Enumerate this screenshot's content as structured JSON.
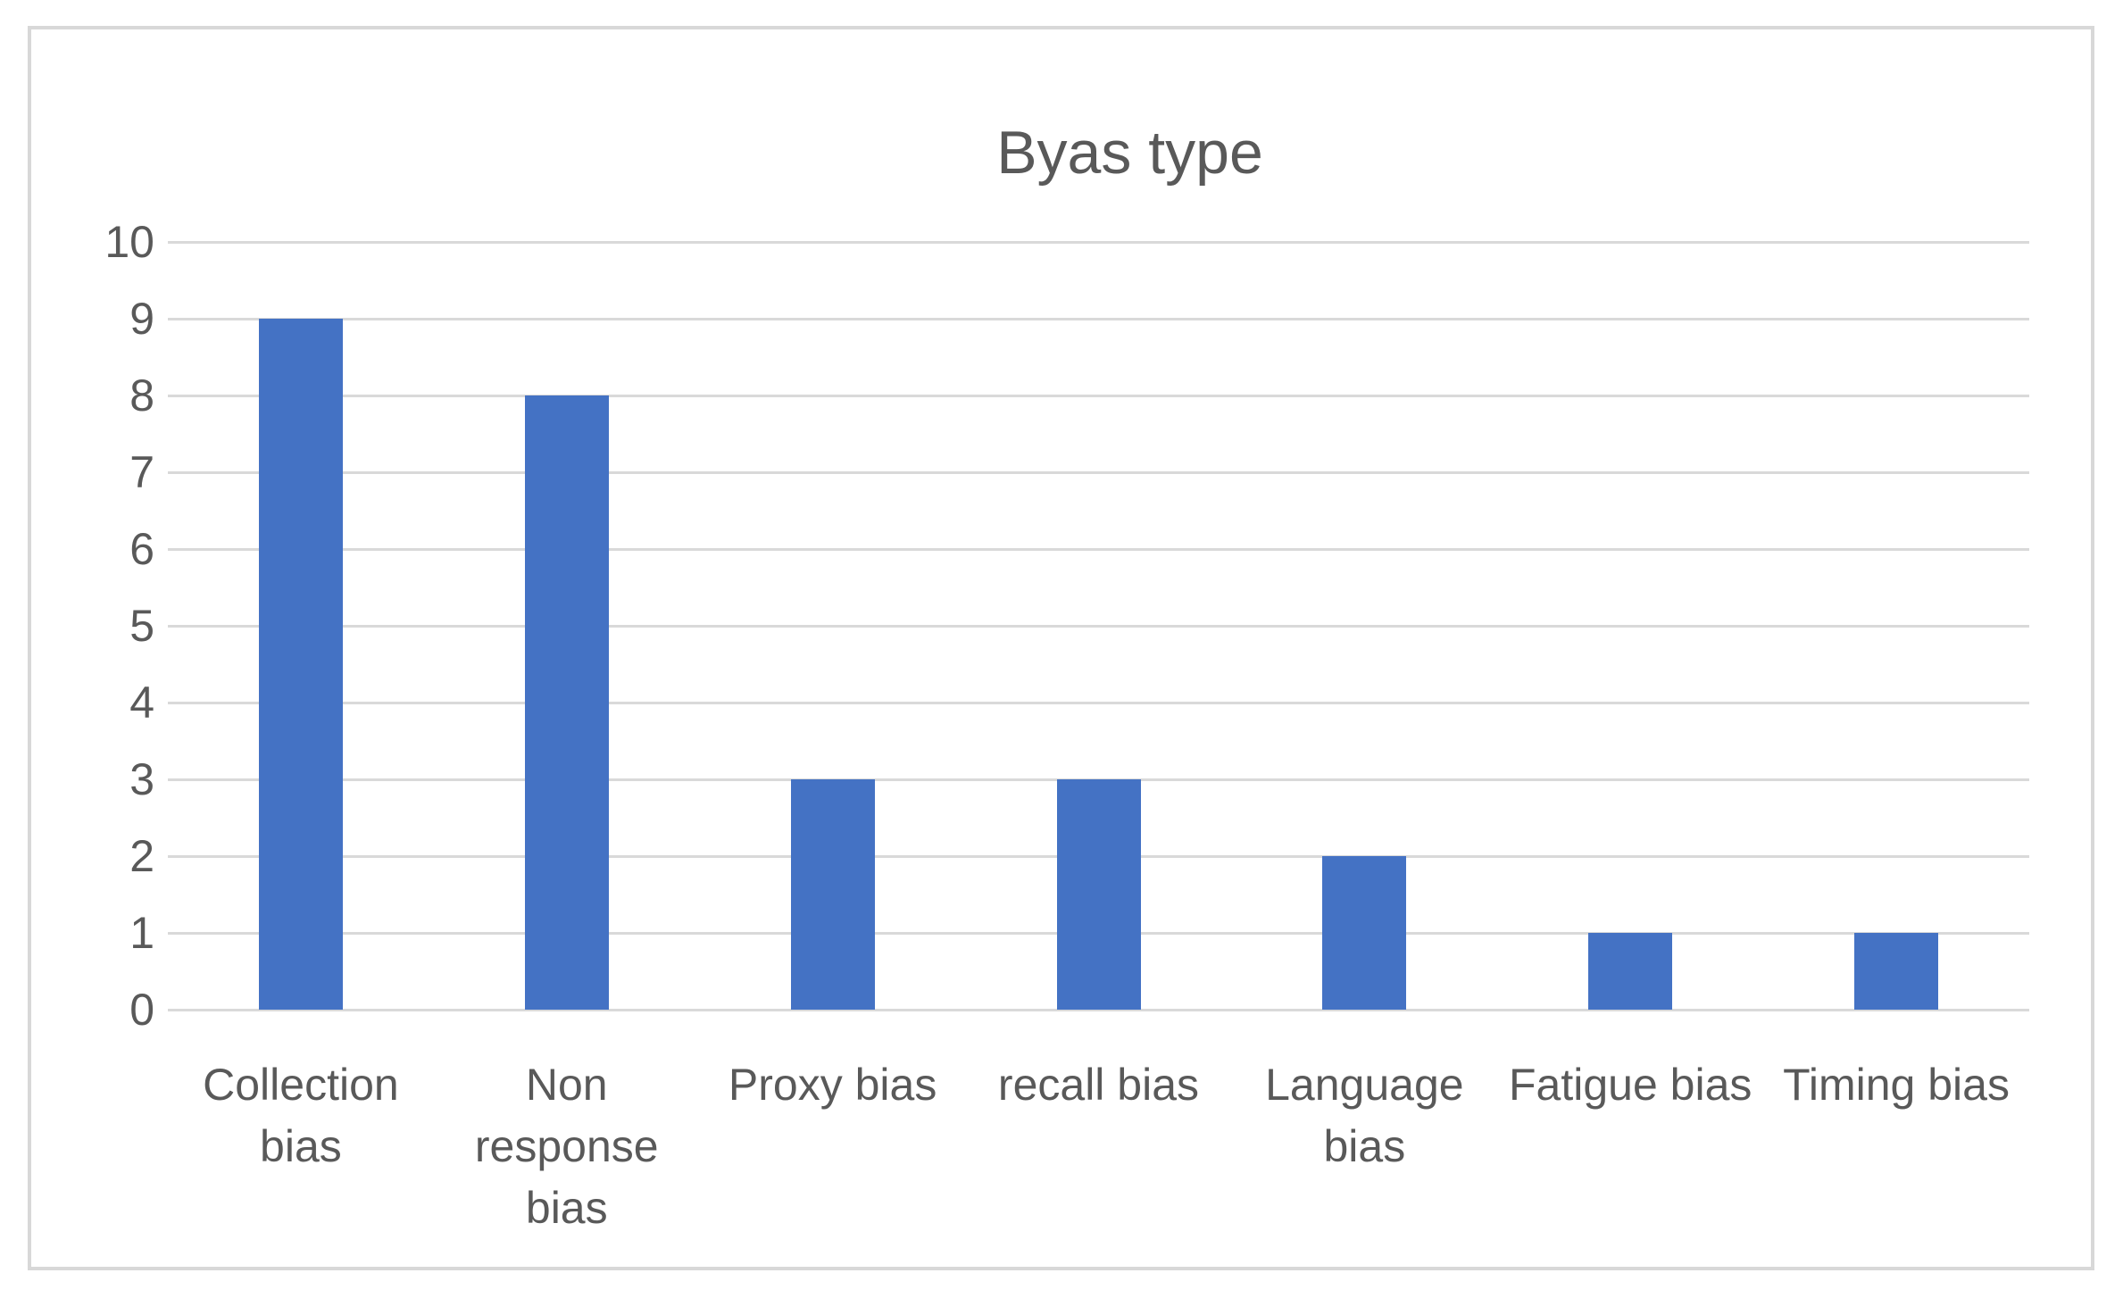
{
  "chart": {
    "title": "Byas type"
  },
  "chart_data": {
    "type": "bar",
    "title": "Byas type",
    "categories": [
      "Collection bias",
      "Non response bias",
      "Proxy bias",
      "recall bias",
      "Language bias",
      "Fatigue bias",
      "Timing bias"
    ],
    "categories_wrapped": [
      "Collection\nbias",
      "Non\nresponse\nbias",
      "Proxy bias",
      "recall bias",
      "Language\nbias",
      "Fatigue bias",
      "Timing bias"
    ],
    "values": [
      9,
      8,
      3,
      3,
      2,
      1,
      1
    ],
    "series": [
      {
        "name": "Byas type",
        "values": [
          9,
          8,
          3,
          3,
          2,
          1,
          1
        ]
      }
    ],
    "xlabel": "",
    "ylabel": "",
    "ylim": [
      0,
      10
    ],
    "yticks": [
      0,
      1,
      2,
      3,
      4,
      5,
      6,
      7,
      8,
      9,
      10
    ],
    "grid": true,
    "legend_position": "none",
    "colors": {
      "bar": "#4472C4",
      "gridline": "#D9D9D9",
      "axis_text": "#595959",
      "title_text": "#595959",
      "frame_border": "#D8D8D8",
      "background": "#FFFFFF"
    }
  }
}
